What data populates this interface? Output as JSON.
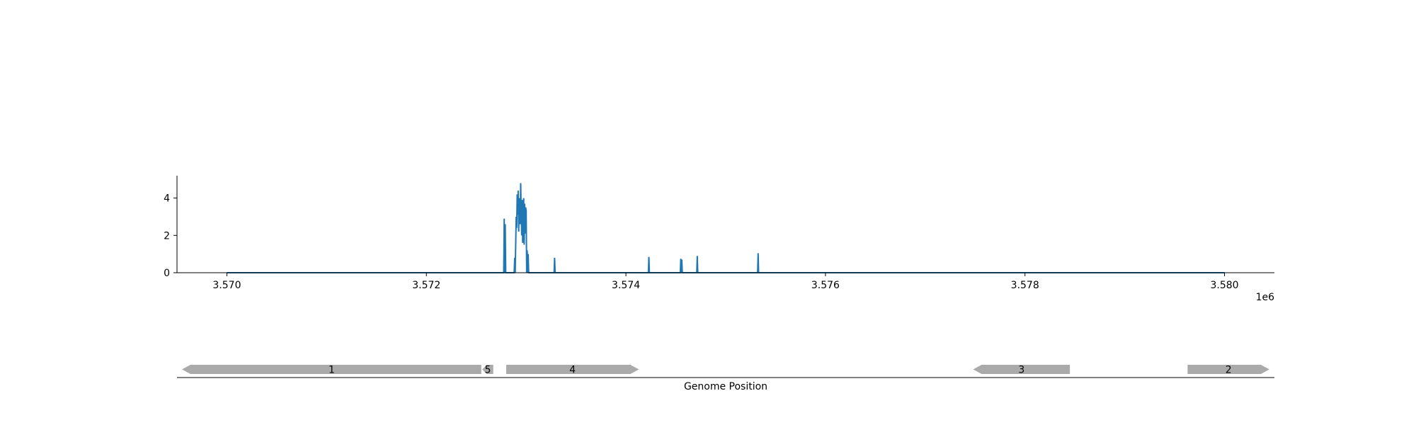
{
  "chart_data": [
    {
      "type": "line",
      "title": "",
      "xlabel": "",
      "ylabel": "",
      "xlim": [
        3569500,
        3580500
      ],
      "ylim": [
        0,
        5.2
      ],
      "x_ticks": [
        3570000,
        3572000,
        3574000,
        3576000,
        3578000,
        3580000
      ],
      "x_tick_labels": [
        "3.570",
        "3.572",
        "3.574",
        "3.576",
        "3.578",
        "3.580"
      ],
      "x_offset_label": "1e6",
      "y_ticks": [
        0,
        2,
        4
      ],
      "y_tick_labels": [
        "0",
        "2",
        "4"
      ],
      "grid": false,
      "legend": "none",
      "series": [
        {
          "color": "#1f77b4",
          "x": [
            3570000,
            3572775,
            3572780,
            3572785,
            3572790,
            3572795,
            3572800,
            3572880,
            3572885,
            3572890,
            3572900,
            3572905,
            3572910,
            3572915,
            3572920,
            3572925,
            3572930,
            3572935,
            3572940,
            3572945,
            3572950,
            3572955,
            3572960,
            3572965,
            3572970,
            3572975,
            3572980,
            3572985,
            3572990,
            3572995,
            3573000,
            3573005,
            3573010,
            3573015,
            3573020,
            3573025,
            3573030,
            3573280,
            3573285,
            3573290,
            3574225,
            3574230,
            3574235,
            3574545,
            3574550,
            3574555,
            3574560,
            3574565,
            3574710,
            3574715,
            3574720,
            3575320,
            3575325,
            3575330,
            3580000
          ],
          "y": [
            0,
            0,
            2.9,
            0,
            2.6,
            0,
            0,
            0,
            0.8,
            0,
            3.0,
            2.4,
            4.2,
            3.1,
            4.4,
            2.2,
            3.6,
            4.0,
            2.6,
            4.8,
            3.2,
            2.0,
            3.9,
            1.6,
            3.4,
            4.0,
            1.5,
            3.7,
            2.1,
            3.5,
            3.3,
            0,
            1.2,
            0,
            1.0,
            0,
            0,
            0,
            0.8,
            0,
            0,
            0.85,
            0,
            0,
            0.75,
            0,
            0.7,
            0,
            0,
            0.9,
            0,
            0,
            1.05,
            0,
            0
          ]
        }
      ]
    },
    {
      "type": "gene_track",
      "xlabel": "Genome Position",
      "genes": [
        {
          "label": "1",
          "start": 3569550,
          "end": 3572550,
          "strand": "-",
          "color": "#aaaaaa"
        },
        {
          "label": "5",
          "start": 3572560,
          "end": 3572670,
          "strand": "-",
          "color": "#aaaaaa"
        },
        {
          "label": "4",
          "start": 3572800,
          "end": 3574130,
          "strand": "+",
          "color": "#aaaaaa"
        },
        {
          "label": "3",
          "start": 3577480,
          "end": 3578450,
          "strand": "-",
          "color": "#aaaaaa"
        },
        {
          "label": "2",
          "start": 3579630,
          "end": 3580450,
          "strand": "+",
          "color": "#aaaaaa"
        }
      ]
    }
  ]
}
